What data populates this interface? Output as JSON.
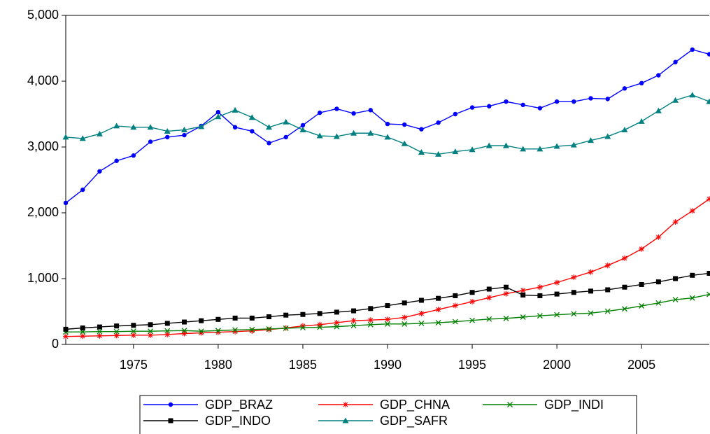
{
  "chart_data": {
    "type": "line",
    "x": [
      1971,
      1972,
      1973,
      1974,
      1975,
      1976,
      1977,
      1978,
      1979,
      1980,
      1981,
      1982,
      1983,
      1984,
      1985,
      1986,
      1987,
      1988,
      1989,
      1990,
      1991,
      1992,
      1993,
      1994,
      1995,
      1996,
      1997,
      1998,
      1999,
      2000,
      2001,
      2002,
      2003,
      2004,
      2005,
      2006,
      2007,
      2008,
      2009
    ],
    "xlim": [
      1971,
      2009
    ],
    "xticks": [
      1975,
      1980,
      1985,
      1990,
      1995,
      2000,
      2005
    ],
    "ylim": [
      0,
      5000
    ],
    "yticks": [
      0,
      {
        "value": 1000,
        "label": "1,000"
      },
      {
        "value": 2000,
        "label": "2,000"
      },
      {
        "value": 3000,
        "label": "3,000"
      },
      {
        "value": 4000,
        "label": "4,000"
      },
      {
        "value": 5000,
        "label": "5,000"
      }
    ],
    "series": [
      {
        "name": "GDP_BRAZ",
        "color": "#0000ff",
        "marker": "circle",
        "values": [
          2150,
          2350,
          2630,
          2790,
          2870,
          3080,
          3150,
          3180,
          3320,
          3530,
          3300,
          3240,
          3060,
          3150,
          3330,
          3520,
          3580,
          3510,
          3560,
          3350,
          3340,
          3270,
          3370,
          3500,
          3600,
          3620,
          3690,
          3640,
          3590,
          3690,
          3690,
          3740,
          3730,
          3890,
          3970,
          4090,
          4290,
          4480,
          4410
        ]
      },
      {
        "name": "GDP_CHNA",
        "color": "#ff0000",
        "marker": "asterisk",
        "values": [
          120,
          125,
          130,
          135,
          140,
          140,
          150,
          165,
          175,
          185,
          195,
          205,
          225,
          250,
          280,
          300,
          330,
          360,
          370,
          380,
          410,
          470,
          530,
          590,
          650,
          710,
          770,
          820,
          870,
          940,
          1020,
          1100,
          1200,
          1310,
          1450,
          1630,
          1860,
          2030,
          2210
        ]
      },
      {
        "name": "GDP_INDI",
        "color": "#008000",
        "marker": "cross",
        "values": [
          190,
          190,
          195,
          195,
          200,
          200,
          205,
          210,
          200,
          210,
          220,
          225,
          235,
          245,
          255,
          260,
          270,
          285,
          300,
          310,
          310,
          320,
          330,
          345,
          365,
          385,
          395,
          415,
          435,
          450,
          465,
          475,
          505,
          540,
          585,
          630,
          680,
          705,
          760
        ]
      },
      {
        "name": "GDP_INDO",
        "color": "#000000",
        "marker": "square",
        "values": [
          230,
          250,
          265,
          280,
          290,
          300,
          320,
          340,
          360,
          380,
          400,
          400,
          420,
          445,
          455,
          470,
          490,
          510,
          545,
          590,
          630,
          670,
          700,
          740,
          790,
          840,
          870,
          750,
          740,
          765,
          790,
          810,
          830,
          870,
          910,
          950,
          1000,
          1050,
          1080
        ]
      },
      {
        "name": "GDP_SAFR",
        "color": "#008080",
        "marker": "triangle",
        "values": [
          3150,
          3130,
          3200,
          3320,
          3300,
          3300,
          3240,
          3260,
          3310,
          3460,
          3560,
          3450,
          3300,
          3380,
          3260,
          3170,
          3160,
          3210,
          3210,
          3150,
          3050,
          2920,
          2890,
          2930,
          2960,
          3020,
          3020,
          2970,
          2970,
          3010,
          3030,
          3100,
          3160,
          3260,
          3390,
          3550,
          3710,
          3790,
          3690
        ]
      }
    ]
  }
}
